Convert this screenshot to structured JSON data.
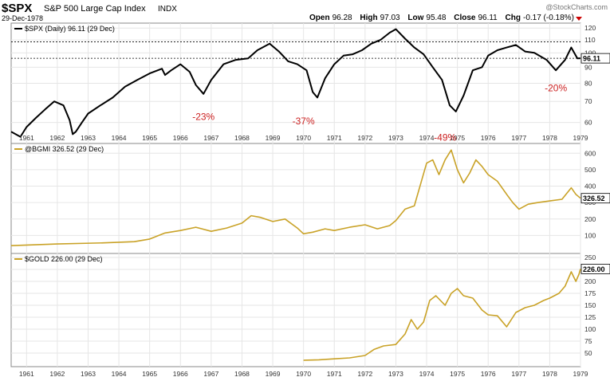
{
  "header": {
    "symbol": "$SPX",
    "name": "S&P 500 Large Cap Index",
    "exchange": "INDX",
    "date": "29-Dec-1978",
    "watermark": "@StockCharts.com",
    "quote": [
      {
        "label": "Open",
        "value": "96.28"
      },
      {
        "label": "High",
        "value": "97.03"
      },
      {
        "label": "Low",
        "value": "95.48"
      },
      {
        "label": "Close",
        "value": "96.11"
      },
      {
        "label": "Chg",
        "value": "-0.17 (-0.18%)"
      }
    ]
  },
  "colors": {
    "spx_line": "#000000",
    "commodity_line": "#c9a227",
    "drawdown_text": "#cc2222",
    "grid": "#e6e6e6",
    "axis_text": "#333333",
    "chg_arrow": "#cc0000"
  },
  "chart_data": [
    {
      "type": "line",
      "panel": "spx",
      "legend": "$SPX (Daily) 96.11 (29 Dec)",
      "last_value_label": "96.11",
      "y_scale": "log",
      "ylim": [
        52,
        123
      ],
      "y_ticks": [
        60,
        70,
        80,
        90,
        100,
        110,
        120
      ],
      "reference_lines": [
        108.4,
        96.11
      ],
      "x": [
        1960.5,
        1960.8,
        1961.0,
        1961.3,
        1961.6,
        1961.9,
        1962.2,
        1962.4,
        1962.5,
        1962.6,
        1962.8,
        1963.0,
        1963.4,
        1963.8,
        1964.2,
        1964.6,
        1965.0,
        1965.4,
        1965.5,
        1965.7,
        1966.0,
        1966.3,
        1966.5,
        1966.75,
        1967.0,
        1967.4,
        1967.8,
        1968.2,
        1968.5,
        1968.9,
        1969.2,
        1969.5,
        1969.8,
        1970.1,
        1970.3,
        1970.45,
        1970.7,
        1971.0,
        1971.3,
        1971.6,
        1971.9,
        1972.2,
        1972.5,
        1972.8,
        1973.0,
        1973.3,
        1973.6,
        1973.9,
        1974.2,
        1974.5,
        1974.75,
        1974.95,
        1975.2,
        1975.5,
        1975.8,
        1976.0,
        1976.3,
        1976.6,
        1976.9,
        1977.2,
        1977.5,
        1977.9,
        1978.2,
        1978.5,
        1978.7,
        1978.9,
        1979.0
      ],
      "values": [
        56,
        54,
        58,
        62,
        66,
        70,
        68,
        61,
        55,
        56,
        60,
        64,
        68,
        72,
        78,
        82,
        86,
        89,
        85,
        88,
        92,
        87,
        79,
        74,
        82,
        92,
        95,
        96,
        102,
        107,
        101,
        94,
        92,
        88,
        75,
        72,
        83,
        92,
        98,
        99,
        102,
        107,
        110,
        116,
        119,
        111,
        104,
        99,
        90,
        82,
        68,
        65,
        73,
        88,
        90,
        98,
        102,
        104,
        106,
        101,
        100,
        95,
        88,
        95,
        104,
        96,
        96.11
      ]
    },
    {
      "type": "line",
      "panel": "bgmi",
      "legend": "@BGMI 326.52 (29 Dec)",
      "last_value_label": "326.52",
      "ylim": [
        0,
        650
      ],
      "y_ticks": [
        100,
        200,
        300,
        400,
        500,
        600
      ],
      "x": [
        1960.5,
        1962.0,
        1963.5,
        1964.5,
        1965.0,
        1965.5,
        1966.0,
        1966.5,
        1967.0,
        1967.5,
        1968.0,
        1968.3,
        1968.6,
        1969.0,
        1969.4,
        1969.8,
        1970.0,
        1970.3,
        1970.7,
        1971.0,
        1971.5,
        1972.0,
        1972.4,
        1972.8,
        1973.0,
        1973.3,
        1973.6,
        1974.0,
        1974.2,
        1974.4,
        1974.6,
        1974.8,
        1975.0,
        1975.2,
        1975.4,
        1975.6,
        1975.8,
        1976.0,
        1976.3,
        1976.6,
        1976.8,
        1977.0,
        1977.3,
        1977.6,
        1978.0,
        1978.4,
        1978.7,
        1978.85,
        1979.0
      ],
      "values": [
        38,
        48,
        55,
        62,
        78,
        115,
        130,
        150,
        125,
        145,
        175,
        220,
        210,
        185,
        200,
        145,
        110,
        120,
        140,
        130,
        150,
        165,
        140,
        160,
        190,
        260,
        280,
        540,
        560,
        470,
        560,
        620,
        500,
        420,
        480,
        560,
        520,
        470,
        430,
        350,
        300,
        260,
        290,
        300,
        310,
        320,
        390,
        350,
        326.52
      ]
    },
    {
      "type": "line",
      "panel": "gold",
      "legend": "$GOLD 226.00 (29 Dec)",
      "last_value_label": "226.00",
      "ylim": [
        25,
        255
      ],
      "y_ticks": [
        50,
        75,
        100,
        125,
        150,
        175,
        200,
        225,
        250
      ],
      "x": [
        1970.0,
        1970.5,
        1971.0,
        1971.5,
        1972.0,
        1972.3,
        1972.6,
        1973.0,
        1973.3,
        1973.5,
        1973.7,
        1973.9,
        1974.1,
        1974.3,
        1974.6,
        1974.8,
        1975.0,
        1975.2,
        1975.5,
        1975.8,
        1976.0,
        1976.3,
        1976.6,
        1976.9,
        1977.2,
        1977.5,
        1977.8,
        1978.0,
        1978.3,
        1978.5,
        1978.7,
        1978.85,
        1978.95,
        1979.0
      ],
      "values": [
        35,
        36,
        38,
        40,
        45,
        58,
        65,
        68,
        90,
        120,
        100,
        115,
        160,
        170,
        150,
        175,
        185,
        170,
        165,
        140,
        130,
        128,
        105,
        135,
        145,
        150,
        160,
        165,
        175,
        190,
        220,
        200,
        215,
        226
      ]
    }
  ],
  "x_axis": {
    "labels": [
      "1961",
      "1962",
      "1963",
      "1964",
      "1965",
      "1966",
      "1967",
      "1968",
      "1969",
      "1970",
      "1971",
      "1972",
      "1973",
      "1974",
      "1975",
      "1976",
      "1977",
      "1978",
      "1979"
    ],
    "range": [
      1960.5,
      1979.0
    ]
  },
  "drawdowns": [
    {
      "label": "-23%",
      "x": 1966.75,
      "value": 64
    },
    {
      "label": "-37%",
      "x": 1970.0,
      "value": 62
    },
    {
      "label": "-49%",
      "x": 1974.6,
      "value": 55
    },
    {
      "label": "-20%",
      "x": 1978.2,
      "value": 79
    }
  ]
}
